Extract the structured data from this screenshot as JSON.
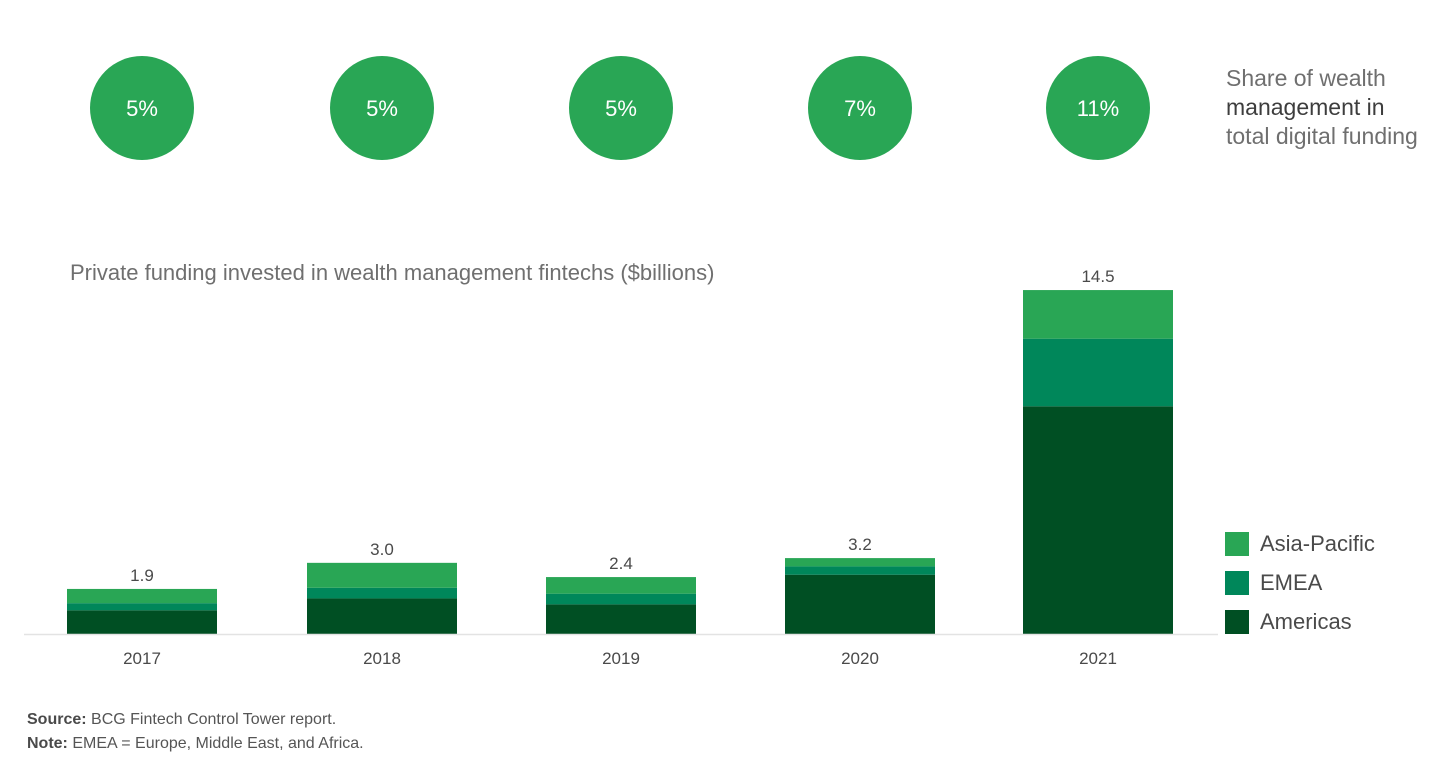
{
  "share": {
    "title_line1": "Share of wealth",
    "title_line2": "management in",
    "title_line3": "total digital funding"
  },
  "footer": {
    "source_label": "Source:",
    "source_text": "BCG Fintech Control Tower report.",
    "note_label": "Note:",
    "note_text": "EMEA = Europe, Middle East, and Africa."
  },
  "chart_data": [
    {
      "type": "table",
      "title": "Share of wealth management in total digital funding",
      "categories": [
        "2017",
        "2018",
        "2019",
        "2020",
        "2021"
      ],
      "values": [
        "5%",
        "5%",
        "5%",
        "7%",
        "11%"
      ],
      "color": "#29a655"
    },
    {
      "type": "bar",
      "stacked": true,
      "title": "Private funding invested in wealth management fintechs ($billions)",
      "categories": [
        "2017",
        "2018",
        "2019",
        "2020",
        "2021"
      ],
      "totals": [
        "1.9",
        "3.0",
        "2.4",
        "3.2",
        "14.5"
      ],
      "series": [
        {
          "name": "Americas",
          "values": [
            1.0,
            1.5,
            1.25,
            2.5,
            9.6
          ],
          "color": "#004f23"
        },
        {
          "name": "EMEA",
          "values": [
            0.3,
            0.45,
            0.45,
            0.35,
            2.85
          ],
          "color": "#00875a"
        },
        {
          "name": "Asia-Pacific",
          "values": [
            0.6,
            1.05,
            0.7,
            0.35,
            2.05
          ],
          "color": "#29a655"
        }
      ],
      "ylim": [
        0,
        15
      ],
      "grid": false,
      "legend": "bottom-right"
    }
  ]
}
